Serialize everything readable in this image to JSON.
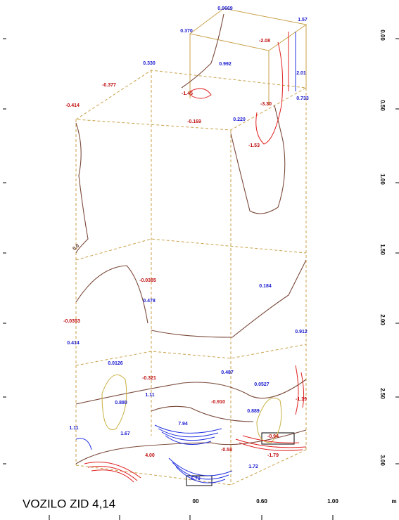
{
  "title": "VOZILO ZID 4,14",
  "x_axis_labels": [
    "00",
    "0.60",
    "1.00",
    "m"
  ],
  "y_axis_labels": [
    "0.00",
    "0.50",
    "1.00",
    "1.50",
    "2.00",
    "2.50",
    "3.00"
  ],
  "contour_labels": [
    {
      "text": "0.0669",
      "color": "#1a1ad0"
    },
    {
      "text": "1.57",
      "color": "#1a1ad0"
    },
    {
      "text": "0.370",
      "color": "#1a1ad0"
    },
    {
      "text": "-2.08",
      "color": "#c01010"
    },
    {
      "text": "2.01",
      "color": "#1a1ad0"
    },
    {
      "text": "0.330",
      "color": "#1a1ad0"
    },
    {
      "text": "0.992",
      "color": "#1a1ad0"
    },
    {
      "text": "-0.377",
      "color": "#c01010"
    },
    {
      "text": "-1.45",
      "color": "#c01010"
    },
    {
      "text": "-3.30",
      "color": "#c01010"
    },
    {
      "text": "0.733",
      "color": "#1a1ad0"
    },
    {
      "text": "-0.414",
      "color": "#c01010"
    },
    {
      "text": "-0.169",
      "color": "#c01010"
    },
    {
      "text": "0.220",
      "color": "#1a1ad0"
    },
    {
      "text": "-1.53",
      "color": "#c01010"
    },
    {
      "text": "0.0",
      "color": "#5a3020"
    },
    {
      "text": "-0.0385",
      "color": "#c01010"
    },
    {
      "text": "0.184",
      "color": "#1a1ad0"
    },
    {
      "text": "0.478",
      "color": "#1a1ad0"
    },
    {
      "text": "-0.0353",
      "color": "#c01010"
    },
    {
      "text": "0.912",
      "color": "#1a1ad0"
    },
    {
      "text": "0.414",
      "color": "#1a1ad0"
    },
    {
      "text": "0.0126",
      "color": "#1a1ad0"
    },
    {
      "text": "0.487",
      "color": "#1a1ad0"
    },
    {
      "text": "-0.321",
      "color": "#c01010"
    },
    {
      "text": "0.0527",
      "color": "#1a1ad0"
    },
    {
      "text": "1.11",
      "color": "#1a1ad0"
    },
    {
      "text": "-1.19",
      "color": "#c01010"
    },
    {
      "text": "0.880",
      "color": "#1a1ad0"
    },
    {
      "text": "-0.910",
      "color": "#c01010"
    },
    {
      "text": "0.889",
      "color": "#1a1ad0"
    },
    {
      "text": "7.94",
      "color": "#1a1ad0"
    },
    {
      "text": "1.11",
      "color": "#1a1ad0"
    },
    {
      "text": "1.67",
      "color": "#1a1ad0"
    },
    {
      "text": "-0.94",
      "color": "#c01010"
    },
    {
      "text": "-0.58",
      "color": "#c01010"
    },
    {
      "text": "4.00",
      "color": "#c01010"
    },
    {
      "text": "-1.79",
      "color": "#c01010"
    },
    {
      "text": "1.72",
      "color": "#1a1ad0"
    },
    {
      "text": "5.70",
      "color": "#1a1ad0"
    }
  ]
}
